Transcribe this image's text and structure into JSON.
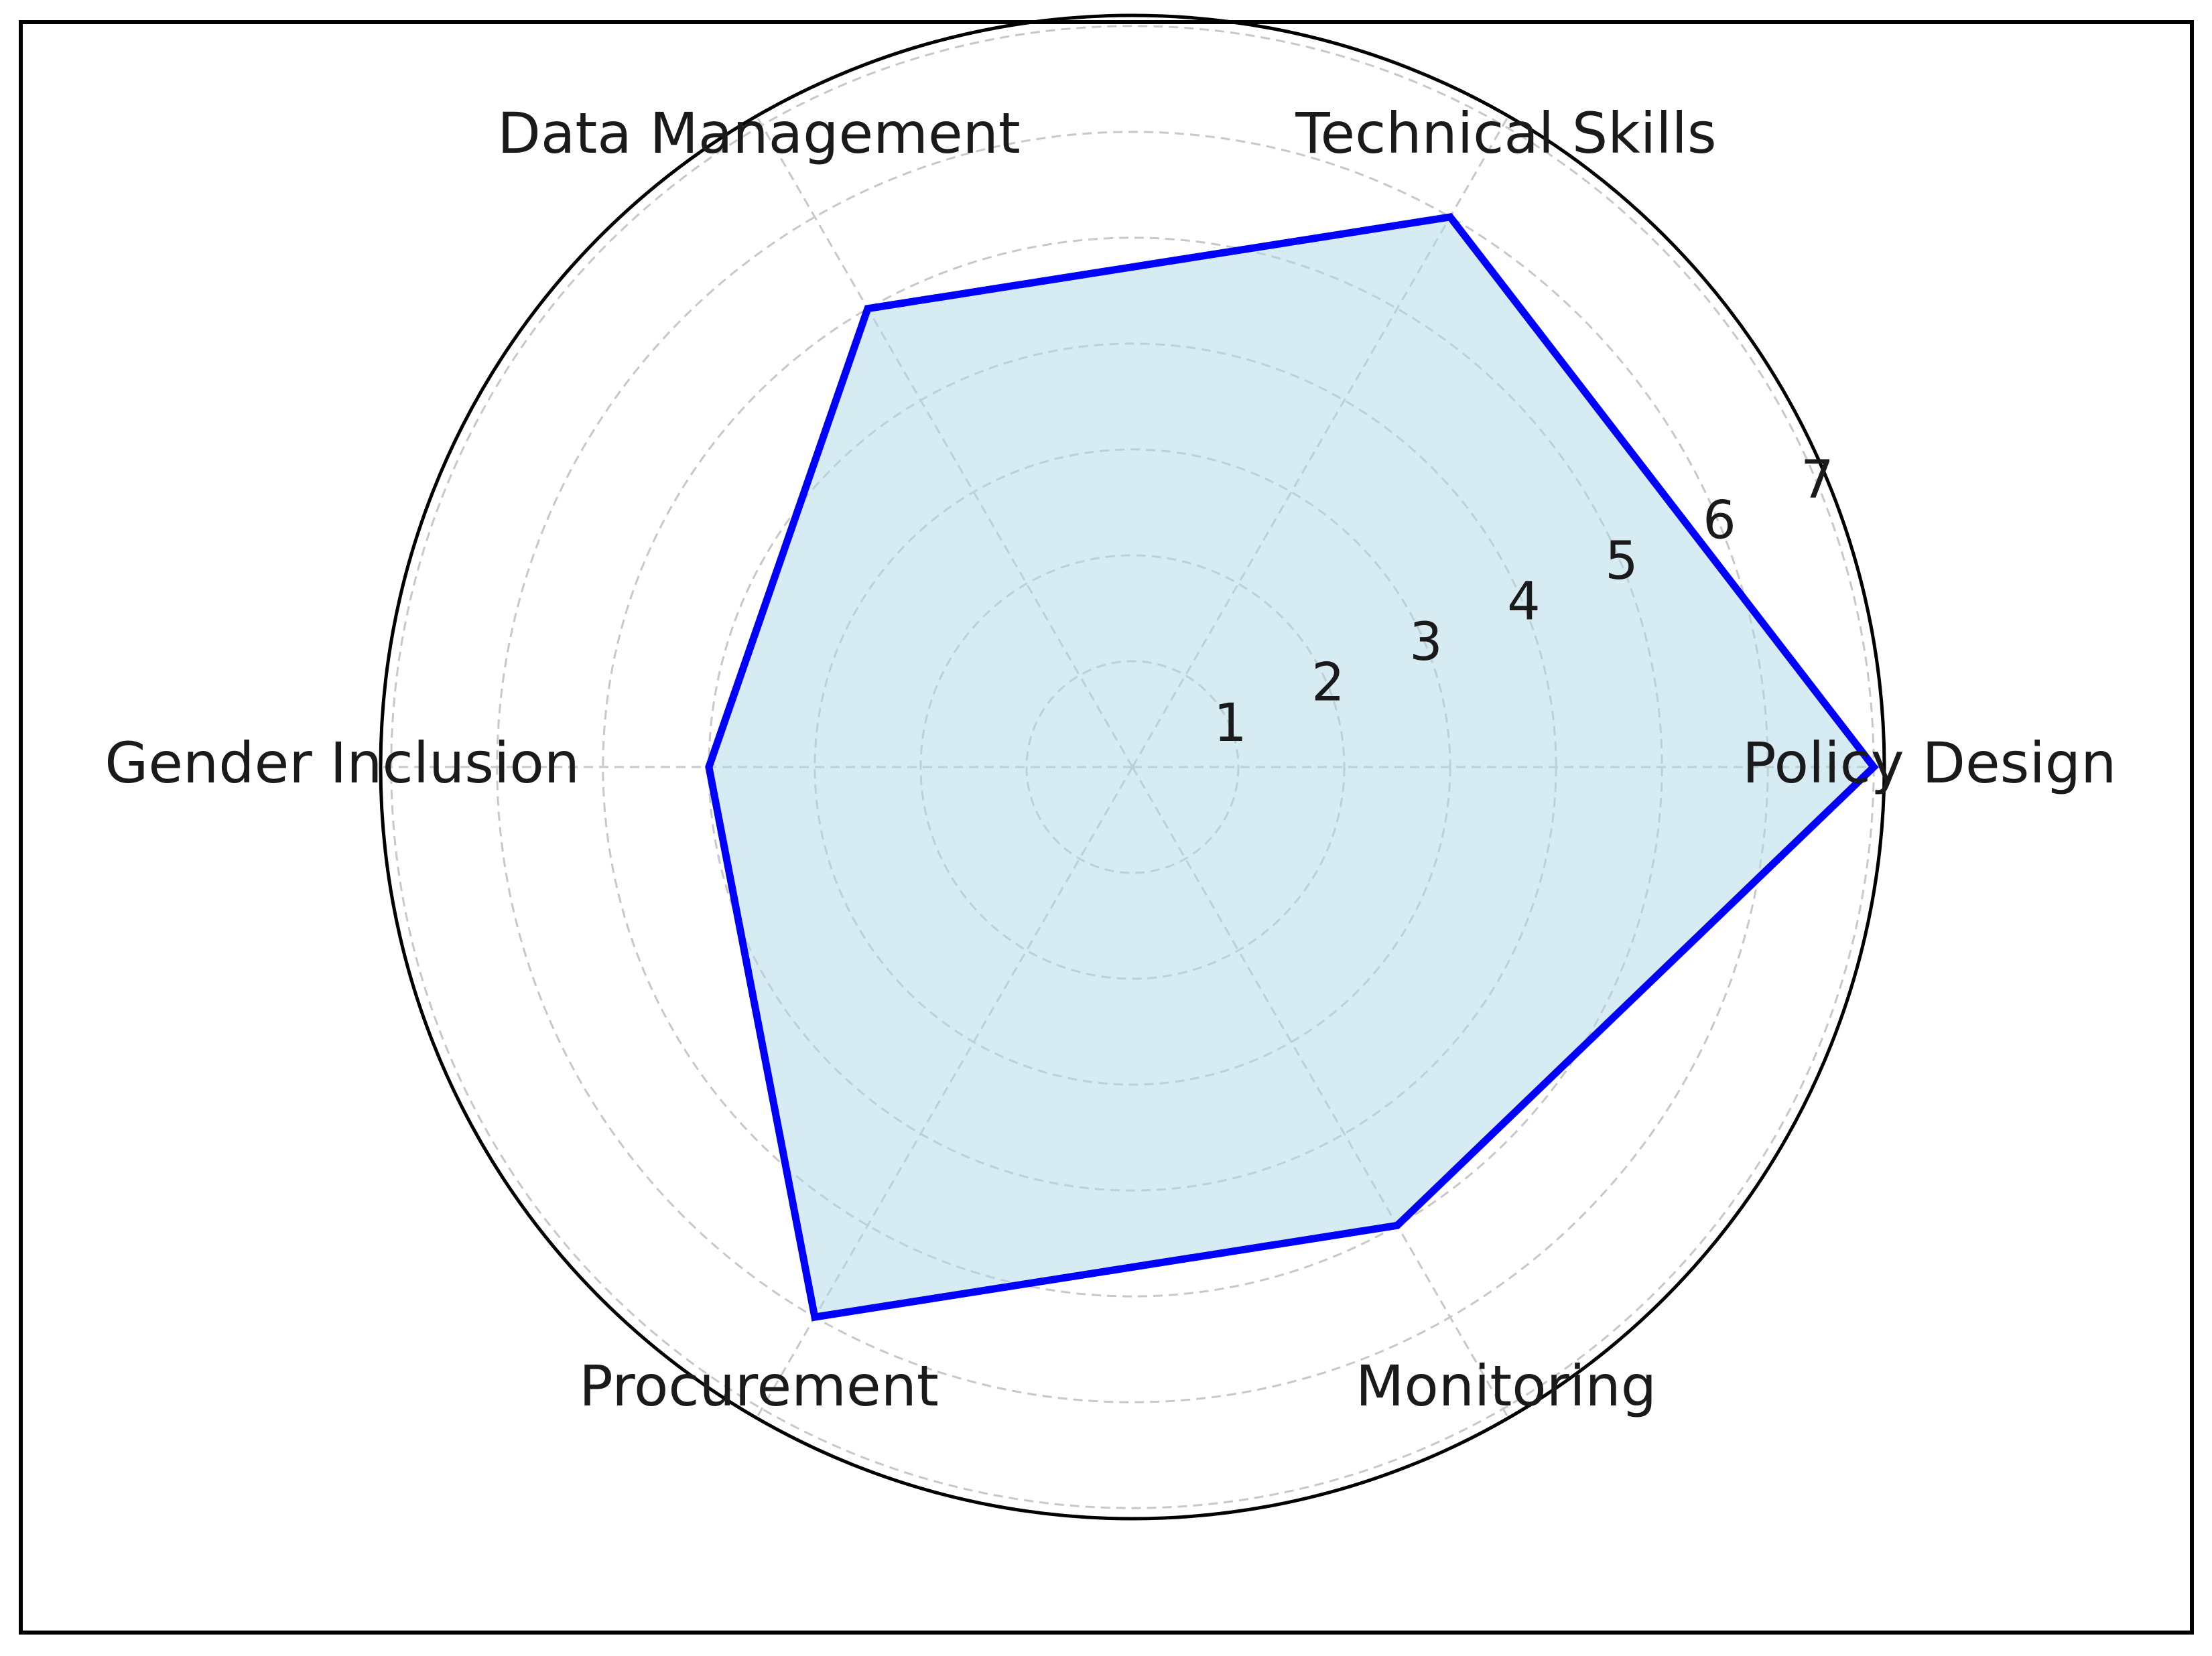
{
  "chart_data": {
    "type": "radar",
    "title": "",
    "categories": [
      "Policy Design",
      "Technical Skills",
      "Data Management",
      "Gender Inclusion",
      "Procurement",
      "Monitoring"
    ],
    "values": [
      7,
      6,
      5,
      4,
      6,
      5
    ],
    "rmax": 7.1,
    "ticks": [
      "1",
      "2",
      "3",
      "4",
      "5",
      "6",
      "7"
    ],
    "grid": true,
    "colors": {
      "line": "#0000ff",
      "fill": "#add8e6",
      "grid": "#c8c8c8",
      "outline": "#000000"
    }
  }
}
